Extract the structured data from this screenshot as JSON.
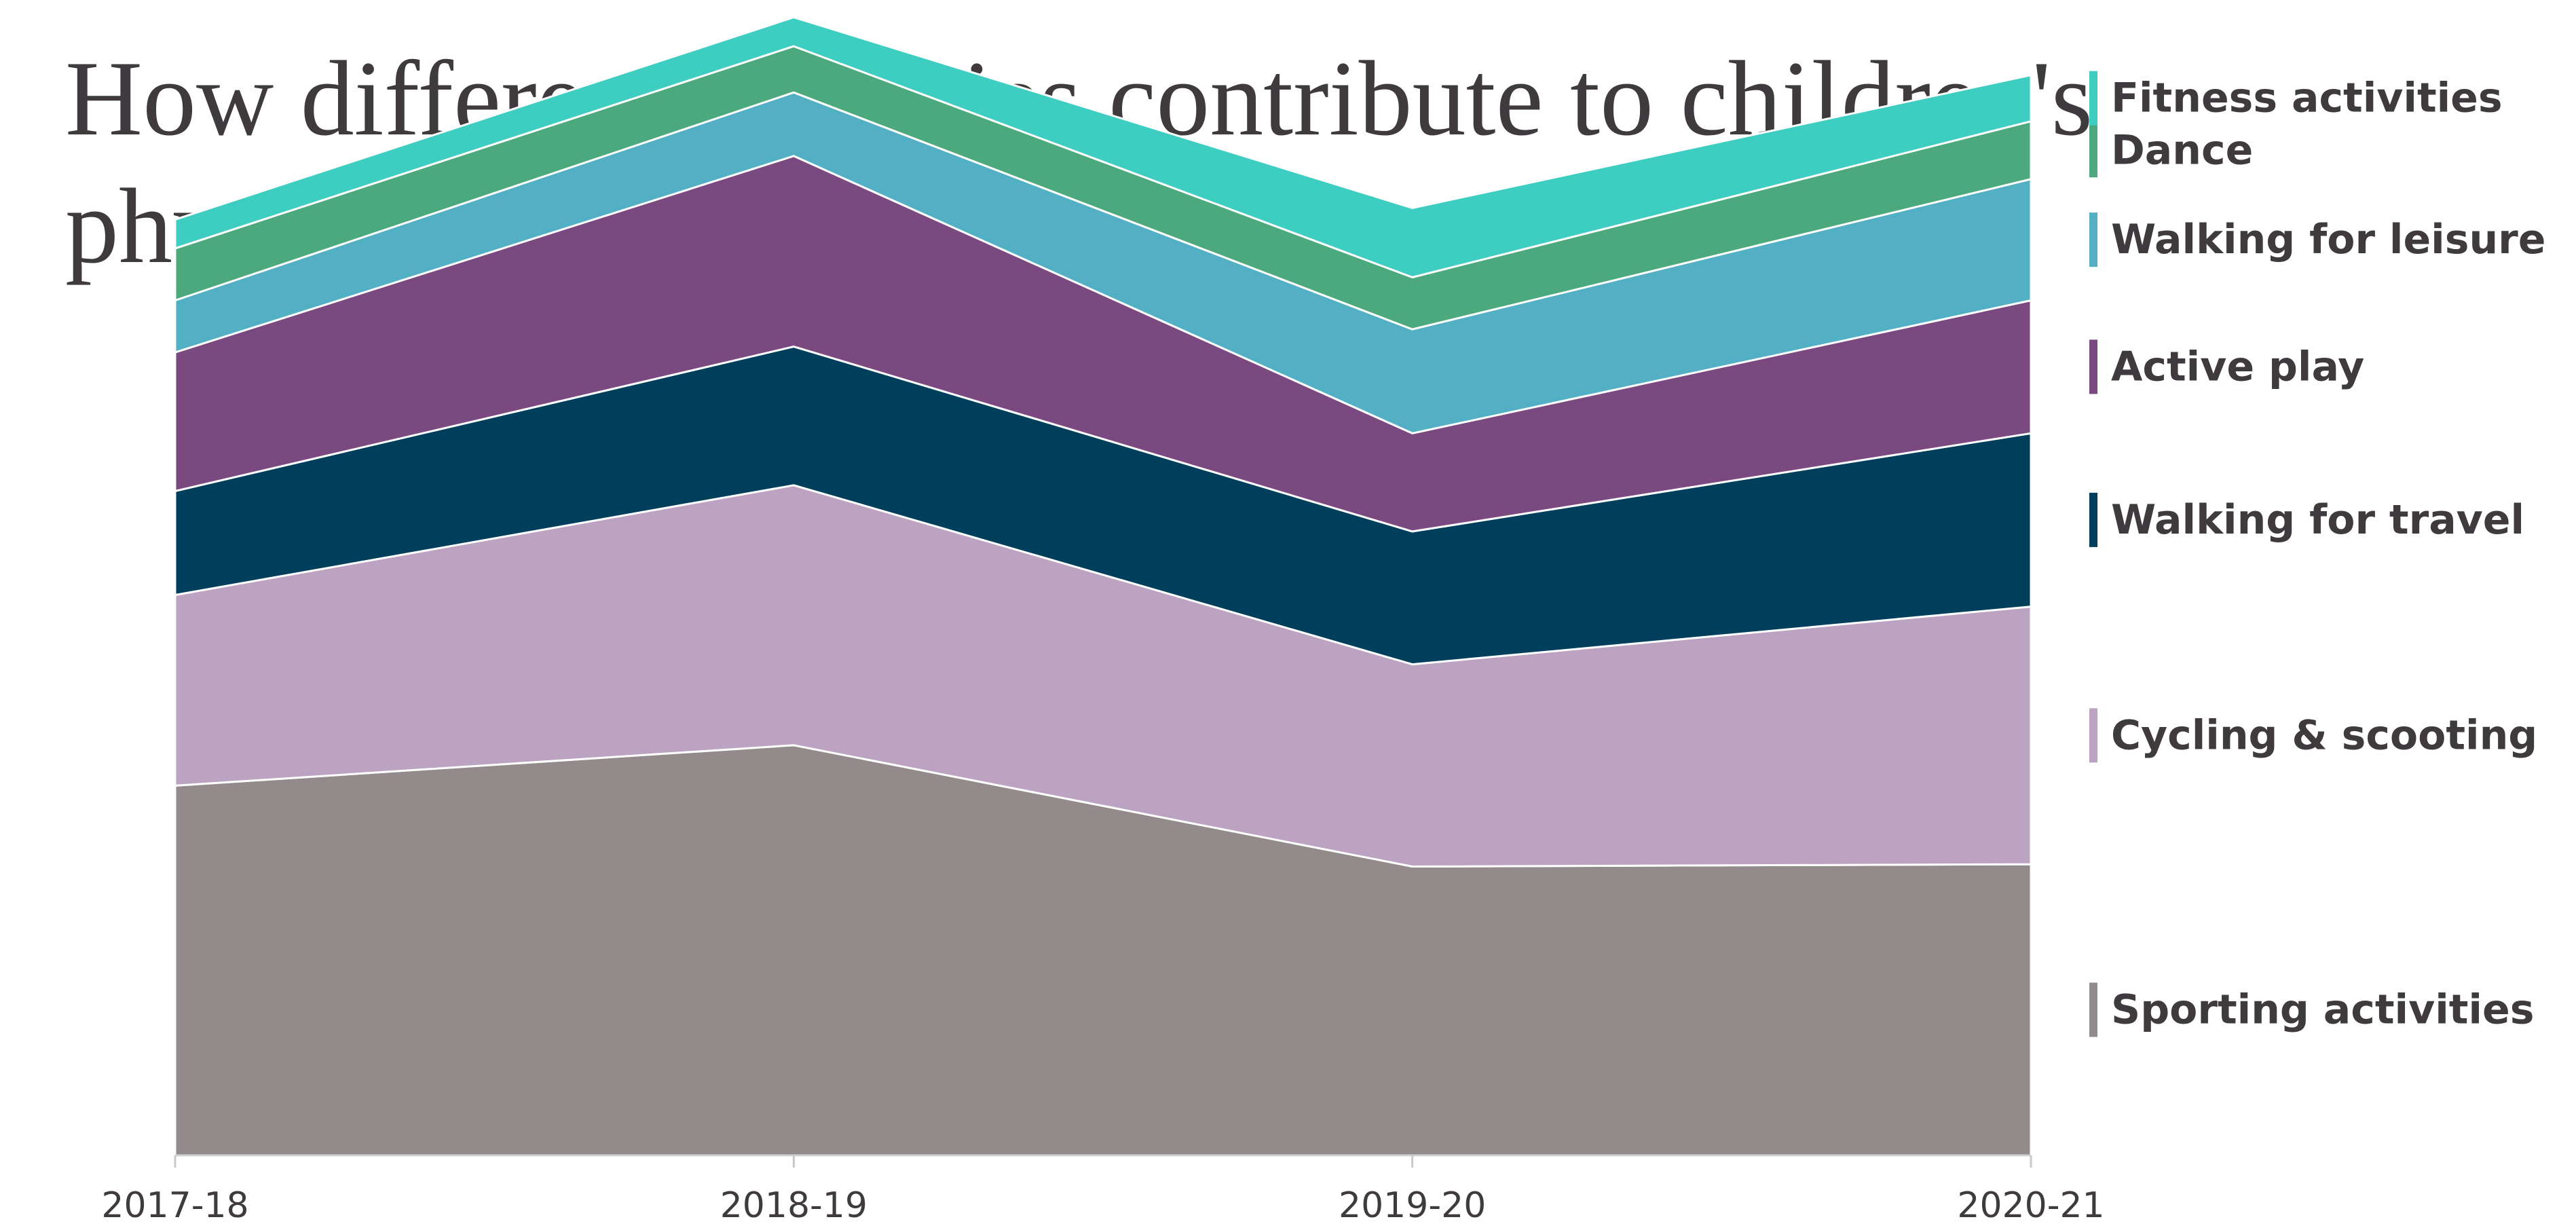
{
  "chart_data": {
    "type": "area",
    "stacked": true,
    "title": "How different activities contribute to children's physical activity",
    "xlabel": "",
    "ylabel": "",
    "categories": [
      "2017-18",
      "2018-19",
      "2019-20",
      "2020-21"
    ],
    "ylim": [
      0,
      100
    ],
    "grid": false,
    "legend_position": "right",
    "series": [
      {
        "name": "Sporting activities",
        "values": [
          32,
          35.5,
          25,
          25.2
        ],
        "color": "#938a8c"
      },
      {
        "name": "Cycling & scooting",
        "values": [
          16.5,
          22.5,
          17.5,
          22.3
        ],
        "color": "#bca3c1"
      },
      {
        "name": "Walking for travel",
        "values": [
          9,
          12,
          11.5,
          15
        ],
        "color": "#003f5c"
      },
      {
        "name": "Active play",
        "values": [
          12,
          16.5,
          8.5,
          11.5
        ],
        "color": "#7a4980"
      },
      {
        "name": "Walking for leisure",
        "values": [
          4.5,
          5.5,
          9,
          10.5
        ],
        "color": "#53b0c4"
      },
      {
        "name": "Dance",
        "values": [
          4.5,
          4,
          4.5,
          5
        ],
        "color": "#4ba97d"
      },
      {
        "name": "Fitness activities",
        "values": [
          2.5,
          2.5,
          6,
          4
        ],
        "color": "#3ecec1"
      }
    ]
  }
}
